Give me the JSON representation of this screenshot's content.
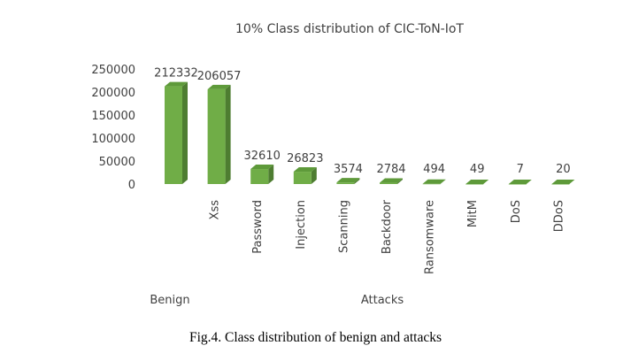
{
  "chart_data": {
    "type": "bar",
    "title": "10% Class distribution of CIC-ToN-IoT",
    "categories": [
      "Benign",
      "Xss",
      "Password",
      "Injection",
      "Scanning",
      "Backdoor",
      "Ransomware",
      "MitM",
      "DoS",
      "DDoS"
    ],
    "values": [
      212332,
      206057,
      32610,
      26823,
      3574,
      2784,
      494,
      49,
      7,
      20
    ],
    "data_labels": [
      "212332",
      "206057",
      "32610",
      "26823",
      "3574",
      "2784",
      "494",
      "49",
      "7",
      "20"
    ],
    "y_ticks": [
      "0",
      "50000",
      "100000",
      "150000",
      "200000",
      "250000"
    ],
    "ylim": [
      0,
      250000
    ],
    "group_labels": [
      "Benign",
      "Attacks"
    ],
    "xlabel": "",
    "ylabel": "",
    "grid": false,
    "legend": "none",
    "colors": {
      "front": "#70ad47",
      "side": "#4e7d31",
      "top": "#5e9a3a"
    }
  },
  "caption": "Fig.4. Class distribution of benign and attacks"
}
